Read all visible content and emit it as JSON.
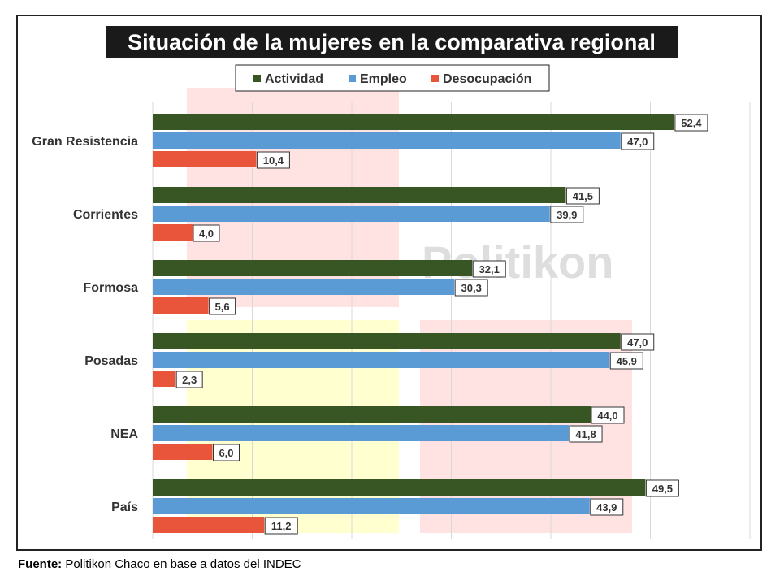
{
  "chart_data": {
    "type": "bar",
    "orientation": "horizontal",
    "title": "Situación de la mujeres en la comparativa regional",
    "categories": [
      "Gran Resistencia",
      "Corrientes",
      "Formosa",
      "Posadas",
      "NEA",
      "País"
    ],
    "series": [
      {
        "name": "Actividad",
        "color": "#375623",
        "values": [
          52.4,
          41.5,
          32.1,
          47.0,
          44.0,
          49.5
        ],
        "labels": [
          "52,4",
          "41,5",
          "32,1",
          "47,0",
          "44,0",
          "49,5"
        ]
      },
      {
        "name": "Empleo",
        "color": "#5b9bd5",
        "values": [
          47.0,
          39.9,
          30.3,
          45.9,
          41.8,
          43.9
        ],
        "labels": [
          "47,0",
          "39,9",
          "30,3",
          "45,9",
          "41,8",
          "43,9"
        ]
      },
      {
        "name": "Desocupación",
        "color": "#e8553a",
        "values": [
          10.4,
          4.0,
          5.6,
          2.3,
          6.0,
          11.2
        ],
        "labels": [
          "10,4",
          "4,0",
          "5,6",
          "2,3",
          "6,0",
          "11,2"
        ]
      }
    ],
    "xlim": [
      0,
      60
    ],
    "grid": true,
    "legend_position": "top-center",
    "watermark": "Politikon"
  },
  "source": {
    "label": "Fuente:",
    "text": " Politikon Chaco en base a datos del INDEC"
  }
}
